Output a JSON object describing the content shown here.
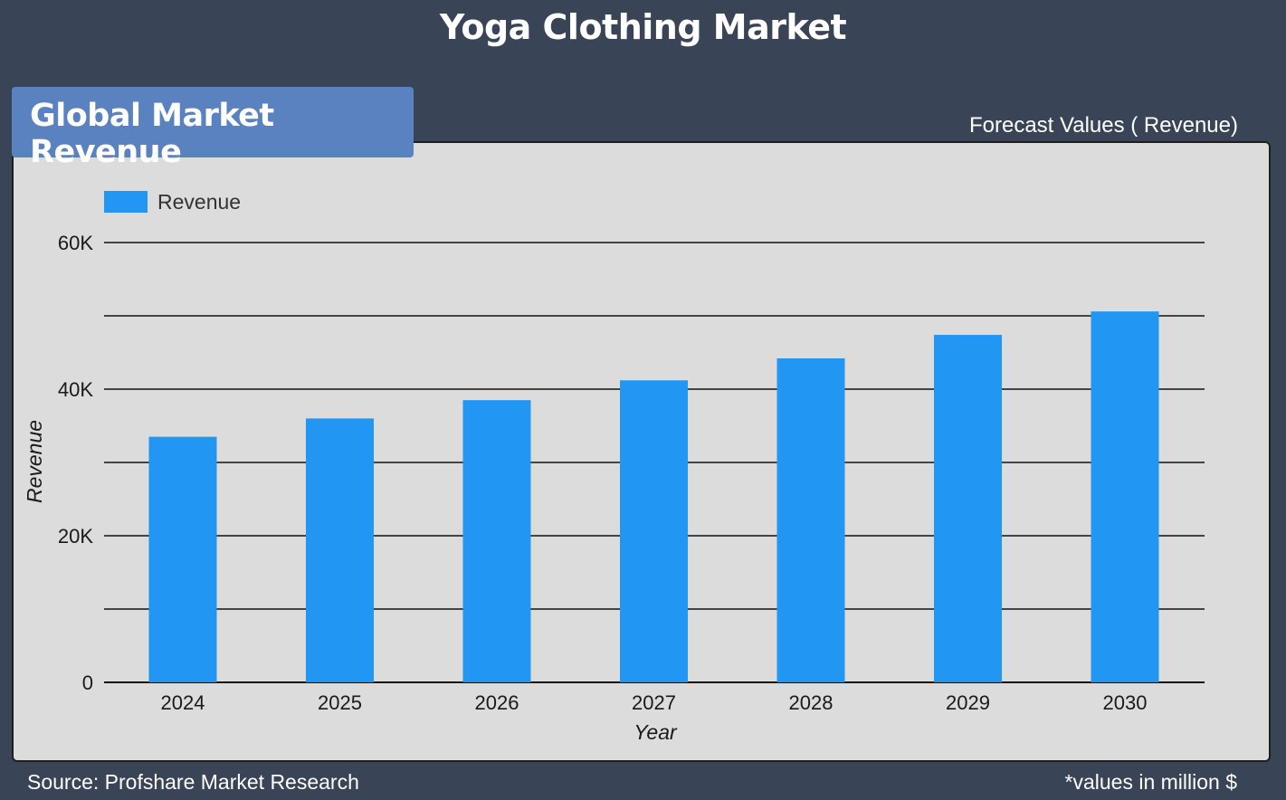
{
  "header": {
    "title": "Yoga Clothing Market",
    "section_tab": "Global Market Revenue",
    "forecast_label": "Forecast Values ( Revenue)"
  },
  "footer": {
    "source": "Source: Profshare Market Research",
    "note": "*values in million $"
  },
  "colors": {
    "bar": "#2196f3",
    "panel": "#dcdcdc",
    "background": "#3a4457",
    "tab": "#5a82c0"
  },
  "chart_data": {
    "type": "bar",
    "categories": [
      "2024",
      "2025",
      "2026",
      "2027",
      "2028",
      "2029",
      "2030"
    ],
    "series": [
      {
        "name": "Revenue",
        "values": [
          33500,
          36000,
          38500,
          41200,
          44200,
          47400,
          50600
        ]
      }
    ],
    "xlabel": "Year",
    "ylabel": "Revenue",
    "ylim": [
      0,
      60000
    ],
    "yticks": [
      0,
      20000,
      40000,
      60000
    ],
    "ytick_labels": [
      "0",
      "20K",
      "40K",
      "60K"
    ],
    "grid": true,
    "legend": "top-left"
  }
}
